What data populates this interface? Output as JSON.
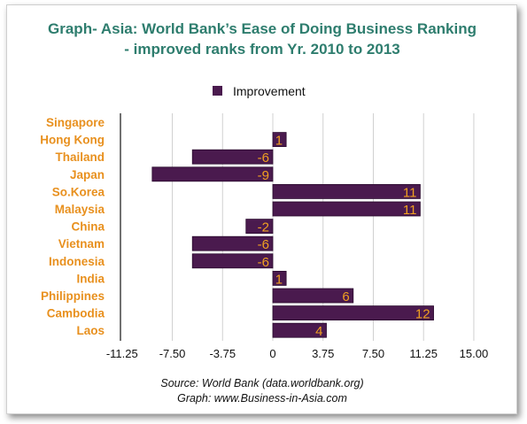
{
  "title_line1": "Graph- Asia: World Bank’s Ease of Doing Business Ranking",
  "title_line2": "- improved ranks from Yr. 2010 to 2013",
  "source_line1": "Source: World Bank (data.worldbank.org)",
  "source_line2": "Graph: www.Business-in-Asia.com",
  "colors": {
    "bar": "#4a1a4e",
    "bar_edge": "#2a0a2e",
    "category_label": "#e8901e",
    "data_label": "#f0a020",
    "title": "#2e7d6e"
  },
  "chart_data": {
    "type": "bar",
    "orientation": "horizontal",
    "categories": [
      "Singapore",
      "Hong Kong",
      "Thailand",
      "Japan",
      "So.Korea",
      "Malaysia",
      "China",
      "Vietnam",
      "Indonesia",
      "India",
      "Philippines",
      "Cambodia",
      "Laos"
    ],
    "series": [
      {
        "name": "Improvement",
        "values": [
          0,
          1,
          -6,
          -9,
          11,
          11,
          -2,
          -6,
          -6,
          1,
          6,
          12,
          4
        ]
      }
    ],
    "data_labels": [
      "",
      "1",
      "-6",
      "-9",
      "11",
      "11",
      "-2",
      "-6",
      "-6",
      "1",
      "6",
      "12",
      "4"
    ],
    "x_ticks": [
      "-11.25",
      "-7.50",
      "-3.75",
      "0",
      "3.75",
      "7.50",
      "11.25",
      "15.00"
    ],
    "x_tick_values": [
      -11.25,
      -7.5,
      -3.75,
      0,
      3.75,
      7.5,
      11.25,
      15.0
    ],
    "xlim": [
      -11.25,
      15.0
    ],
    "legend_position": "top-center",
    "grid": "vertical"
  }
}
